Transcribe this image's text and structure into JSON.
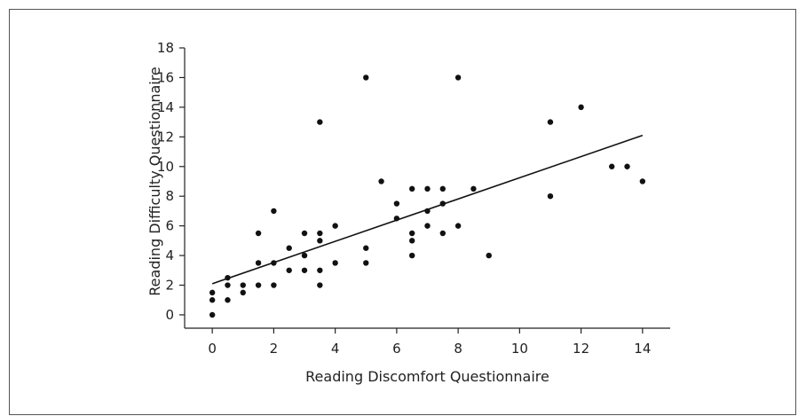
{
  "chart_data": {
    "type": "scatter",
    "title": "",
    "xlabel": "Reading Discomfort Questionnaire",
    "ylabel": "Reading Difficulty Questionnaire",
    "xlim": [
      -0.9,
      14.9
    ],
    "ylim": [
      -0.9,
      18
    ],
    "xticks": [
      0,
      2,
      4,
      6,
      8,
      10,
      12,
      14
    ],
    "yticks": [
      0,
      2,
      4,
      6,
      8,
      10,
      12,
      14,
      16,
      18
    ],
    "grid": false,
    "legend": "none",
    "points": [
      {
        "x": 0,
        "y": 0
      },
      {
        "x": 0,
        "y": 1
      },
      {
        "x": 0,
        "y": 1.5
      },
      {
        "x": 0.5,
        "y": 1
      },
      {
        "x": 0.5,
        "y": 2
      },
      {
        "x": 0.5,
        "y": 2.5
      },
      {
        "x": 1,
        "y": 1.5
      },
      {
        "x": 1,
        "y": 2
      },
      {
        "x": 1.5,
        "y": 2
      },
      {
        "x": 1.5,
        "y": 3.5
      },
      {
        "x": 1.5,
        "y": 5.5
      },
      {
        "x": 2,
        "y": 2
      },
      {
        "x": 2,
        "y": 3.5
      },
      {
        "x": 2,
        "y": 7
      },
      {
        "x": 2.5,
        "y": 3
      },
      {
        "x": 2.5,
        "y": 4.5
      },
      {
        "x": 3,
        "y": 3
      },
      {
        "x": 3,
        "y": 4
      },
      {
        "x": 3,
        "y": 5.5
      },
      {
        "x": 3.5,
        "y": 2
      },
      {
        "x": 3.5,
        "y": 3
      },
      {
        "x": 3.5,
        "y": 5
      },
      {
        "x": 3.5,
        "y": 5.5
      },
      {
        "x": 3.5,
        "y": 13
      },
      {
        "x": 4,
        "y": 3.5
      },
      {
        "x": 4,
        "y": 6
      },
      {
        "x": 5,
        "y": 3.5
      },
      {
        "x": 5,
        "y": 4.5
      },
      {
        "x": 5,
        "y": 16
      },
      {
        "x": 5.5,
        "y": 9
      },
      {
        "x": 6,
        "y": 6.5
      },
      {
        "x": 6,
        "y": 7.5
      },
      {
        "x": 6.5,
        "y": 4
      },
      {
        "x": 6.5,
        "y": 5
      },
      {
        "x": 6.5,
        "y": 5.5
      },
      {
        "x": 6.5,
        "y": 8.5
      },
      {
        "x": 7,
        "y": 6
      },
      {
        "x": 7,
        "y": 7
      },
      {
        "x": 7,
        "y": 8.5
      },
      {
        "x": 7.5,
        "y": 5.5
      },
      {
        "x": 7.5,
        "y": 7.5
      },
      {
        "x": 7.5,
        "y": 8.5
      },
      {
        "x": 8,
        "y": 6
      },
      {
        "x": 8,
        "y": 16
      },
      {
        "x": 8.5,
        "y": 8.5
      },
      {
        "x": 9,
        "y": 4
      },
      {
        "x": 11,
        "y": 8
      },
      {
        "x": 11,
        "y": 13
      },
      {
        "x": 12,
        "y": 14
      },
      {
        "x": 13,
        "y": 10
      },
      {
        "x": 13.5,
        "y": 10
      },
      {
        "x": 14,
        "y": 9
      }
    ],
    "fit_line": {
      "x": [
        0,
        14
      ],
      "y": [
        2.1,
        12.1
      ]
    }
  }
}
